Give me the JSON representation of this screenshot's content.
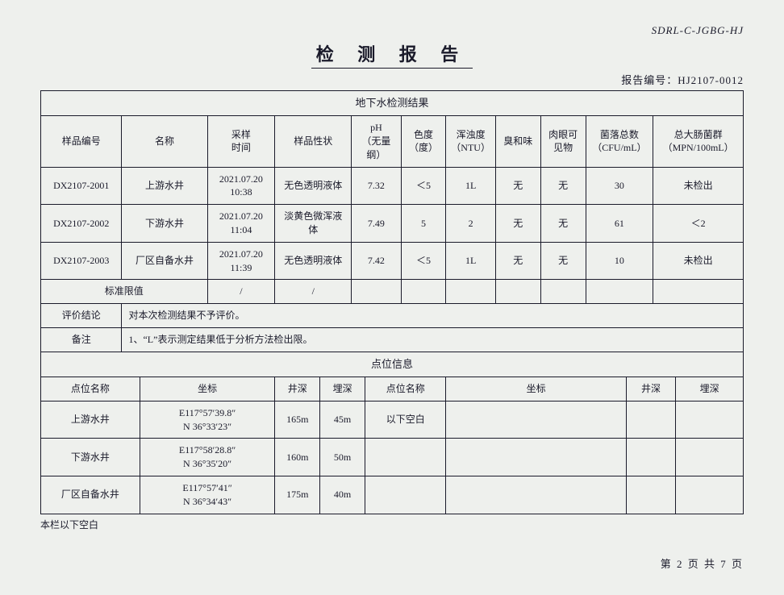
{
  "doc_code": "SDRL-C-JGBG-HJ",
  "title": "检 测 报 告",
  "report_no_label": "报告编号：",
  "report_no": "HJ2107-0012",
  "table1": {
    "caption": "地下水检测结果",
    "headers": [
      "样品编号",
      "名称",
      "采样\n时间",
      "样品性状",
      "pH\n（无量\n纲）",
      "色度\n（度）",
      "浑浊度\n（NTU）",
      "臭和味",
      "肉眼可\n见物",
      "菌落总数\n（CFU/mL）",
      "总大肠菌群\n（MPN/100mL）"
    ],
    "col_widths": [
      "90",
      "95",
      "75",
      "85",
      "55",
      "50",
      "55",
      "50",
      "50",
      "75",
      "100"
    ],
    "rows": [
      [
        "DX2107-2001",
        "上游水井",
        "2021.07.20\n10:38",
        "无色透明液体",
        "7.32",
        "＜5",
        "1L",
        "无",
        "无",
        "30",
        "未检出"
      ],
      [
        "DX2107-2002",
        "下游水井",
        "2021.07.20\n11:04",
        "淡黄色微浑液\n体",
        "7.49",
        "5",
        "2",
        "无",
        "无",
        "61",
        "＜2"
      ],
      [
        "DX2107-2003",
        "厂区自备水井",
        "2021.07.20\n11:39",
        "无色透明液体",
        "7.42",
        "＜5",
        "1L",
        "无",
        "无",
        "10",
        "未检出"
      ]
    ],
    "limit_row_label": "标准限值",
    "limit_row": [
      "/",
      "/",
      "",
      "",
      "",
      "",
      "",
      "",
      ""
    ],
    "eval_label": "评价结论",
    "eval_text": "对本次检测结果不予评价。",
    "remark_label": "备注",
    "remark_text": "1、“L”表示测定结果低于分析方法检出限。"
  },
  "table2": {
    "caption": "点位信息",
    "headers": [
      "点位名称",
      "坐标",
      "井深",
      "埋深",
      "点位名称",
      "坐标",
      "井深",
      "埋深"
    ],
    "col_widths": [
      "110",
      "150",
      "50",
      "50",
      "90",
      "200",
      "55",
      "75"
    ],
    "rows": [
      [
        "上游水井",
        "E117°57′39.8″\nN 36°33′23″",
        "165m",
        "45m",
        "以下空白",
        "",
        "",
        ""
      ],
      [
        "下游水井",
        "E117°58′28.8″\nN 36°35′20″",
        "160m",
        "50m",
        "",
        "",
        "",
        ""
      ],
      [
        "厂区自备水井",
        "E117°57′41″\nN 36°34′43″",
        "175m",
        "40m",
        "",
        "",
        "",
        ""
      ]
    ]
  },
  "foot_note": "本栏以下空白",
  "page_no": "第 2 页  共 7 页",
  "colors": {
    "bg": "#eef0ed",
    "text": "#1a1a2a",
    "border": "#1a1a2a"
  }
}
